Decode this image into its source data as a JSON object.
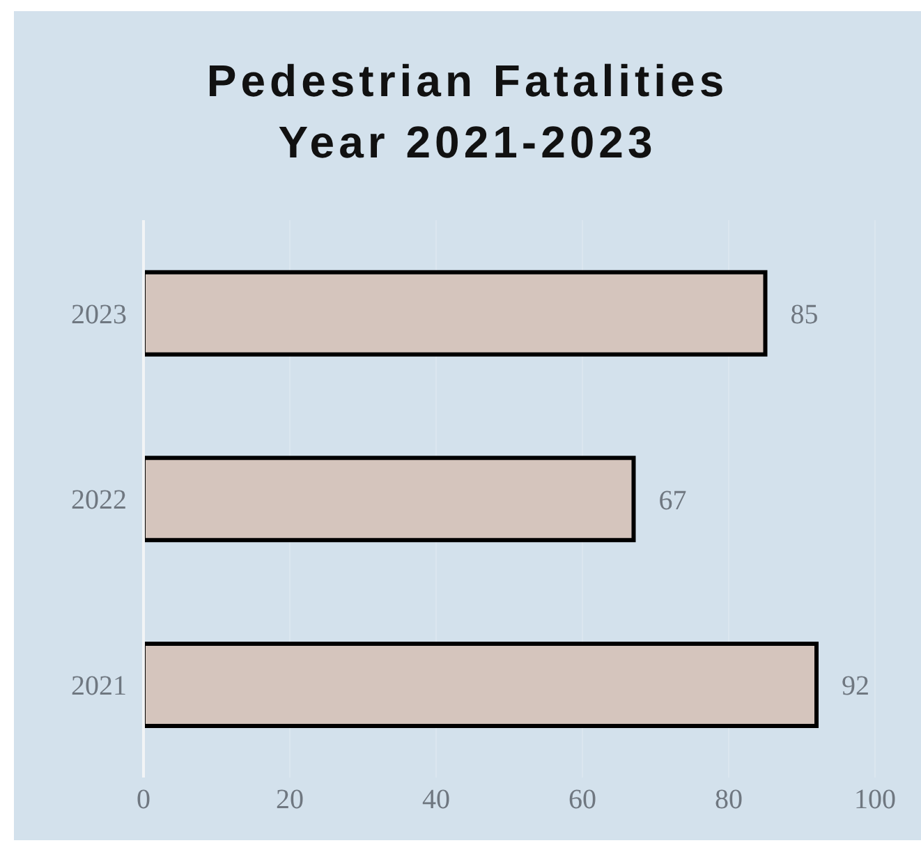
{
  "chart_data": {
    "type": "bar",
    "orientation": "horizontal",
    "title": "Pedestrian Fatalities\nYear 2021-2023",
    "categories": [
      "2023",
      "2022",
      "2021"
    ],
    "values": [
      85,
      67,
      92
    ],
    "color": "#d5c5bd",
    "xlim": [
      0,
      100
    ],
    "xticks": [
      0,
      20,
      40,
      60,
      80,
      100
    ],
    "data_labels": true,
    "grid": "x"
  }
}
